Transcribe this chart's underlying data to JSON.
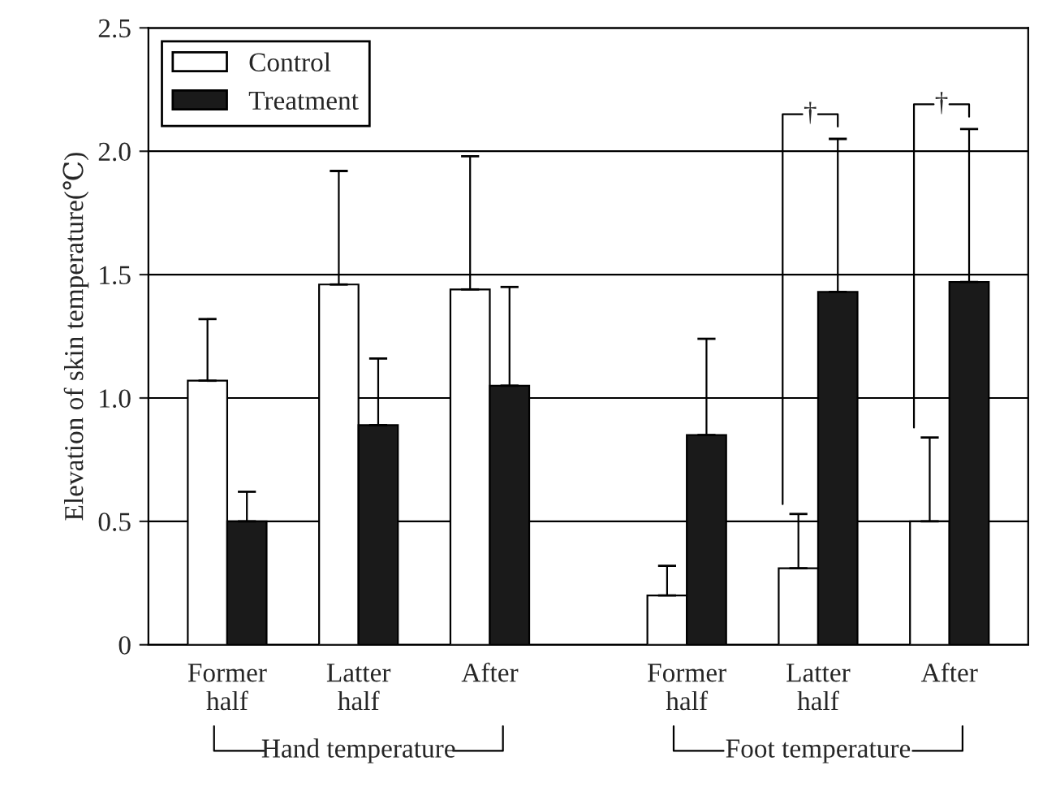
{
  "chart_data": {
    "type": "bar",
    "ylabel": "Elevation of skin temperature(℃)",
    "categories": [
      "Former\nhalf",
      "Latter\nhalf",
      "After",
      "Former\nhalf",
      "Latter\nhalf",
      "After"
    ],
    "series": [
      {
        "name": "Control",
        "color": "#ffffff",
        "values": [
          1.07,
          1.46,
          1.44,
          0.2,
          0.31,
          0.5
        ],
        "errors": [
          [
            1.07,
            1.32
          ],
          [
            1.46,
            1.92
          ],
          [
            1.44,
            1.98
          ],
          [
            0.2,
            0.32
          ],
          [
            0.31,
            0.53
          ],
          [
            0.5,
            0.84
          ]
        ]
      },
      {
        "name": "Treatment",
        "color": "#1a1a1a",
        "values": [
          0.5,
          0.89,
          1.05,
          0.85,
          1.43,
          1.47
        ],
        "errors": [
          [
            0.5,
            0.62
          ],
          [
            0.89,
            1.16
          ],
          [
            1.05,
            1.45
          ],
          [
            0.85,
            1.24
          ],
          [
            1.43,
            2.05
          ],
          [
            1.47,
            2.09
          ]
        ]
      }
    ],
    "ylim": [
      0,
      2.5
    ],
    "yticks": [
      0,
      0.5,
      {
        "value": 1.0,
        "label": "1.0"
      },
      {
        "value": 1.5,
        "label": "1.5"
      },
      {
        "value": 2.0,
        "label": "2.0"
      },
      {
        "value": 2.5,
        "label": "2.5"
      }
    ],
    "grid": "y",
    "legend": "top left",
    "annotations": [
      "Hand temperature",
      "Foot temperature",
      "†",
      "†"
    ]
  }
}
